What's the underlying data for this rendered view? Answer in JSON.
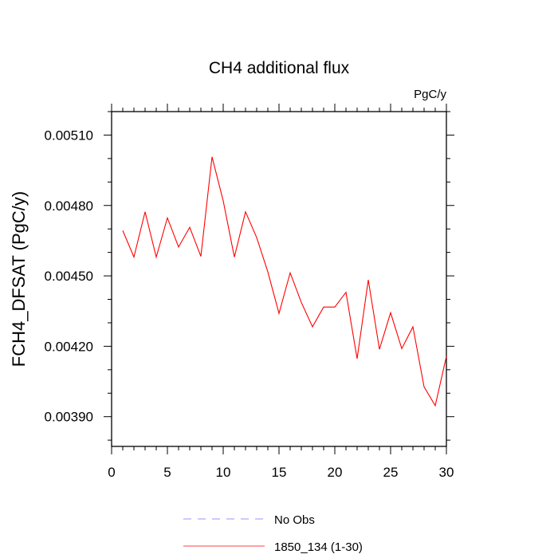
{
  "chart_data": {
    "type": "line",
    "title": "CH4 additional flux",
    "units": "PgC/y",
    "ylabel": "FCH4_DFSAT  (PgC/y)",
    "xlabel": "",
    "xlim": [
      0,
      30
    ],
    "ylim": [
      0.0037733,
      0.0052
    ],
    "xticks": [
      "0",
      "5",
      "10",
      "15",
      "20",
      "25",
      "30"
    ],
    "yticks": [
      "0.00390",
      "0.00420",
      "0.00450",
      "0.00480",
      "0.00510"
    ],
    "grid": false,
    "legend_position": "bottom-center",
    "series": [
      {
        "name": "No Obs",
        "color": "#0000ff",
        "dash": "dashed",
        "x": [],
        "y": []
      },
      {
        "name": "1850_134 (1-30)",
        "color": "#ff0000",
        "dash": "solid",
        "x": [
          1,
          2,
          3,
          4,
          5,
          6,
          7,
          8,
          9,
          10,
          11,
          12,
          13,
          14,
          15,
          16,
          17,
          18,
          19,
          20,
          21,
          22,
          23,
          24,
          25,
          26,
          27,
          28,
          29,
          30
        ],
        "y": [
          0.004693,
          0.00458,
          0.004773,
          0.00458,
          0.004747,
          0.004623,
          0.004707,
          0.004583,
          0.005007,
          0.00482,
          0.00458,
          0.004773,
          0.004663,
          0.004517,
          0.00434,
          0.004513,
          0.004387,
          0.004283,
          0.004367,
          0.004367,
          0.00443,
          0.004147,
          0.004483,
          0.004187,
          0.004343,
          0.00419,
          0.004283,
          0.004027,
          0.003947,
          0.004157
        ]
      }
    ]
  }
}
